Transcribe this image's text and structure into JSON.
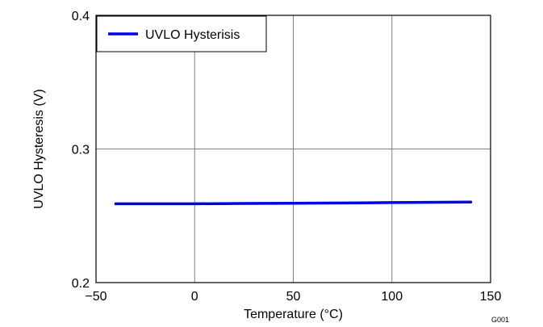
{
  "chart_data": {
    "type": "line",
    "title": "",
    "xlabel": "Temperature (°C)",
    "ylabel": "UVLO Hysteresis (V)",
    "xlim": [
      -50,
      150
    ],
    "ylim": [
      0.2,
      0.4
    ],
    "x_ticks": [
      -50,
      0,
      50,
      100,
      150
    ],
    "y_ticks": [
      0.2,
      0.3,
      0.4
    ],
    "x_tick_labels": [
      "−50",
      "0",
      "50",
      "100",
      "150"
    ],
    "y_tick_labels": [
      "0.2",
      "0.3",
      "0.4"
    ],
    "grid": true,
    "legend_position": "top-left",
    "series": [
      {
        "name": "UVLO Hysterisis",
        "color": "#0000e6",
        "x": [
          -40,
          0,
          25,
          50,
          85,
          100,
          125,
          140
        ],
        "y": [
          0.259,
          0.259,
          0.2592,
          0.2594,
          0.2597,
          0.2599,
          0.2601,
          0.2603
        ]
      }
    ],
    "annotations": [
      "G001"
    ]
  }
}
